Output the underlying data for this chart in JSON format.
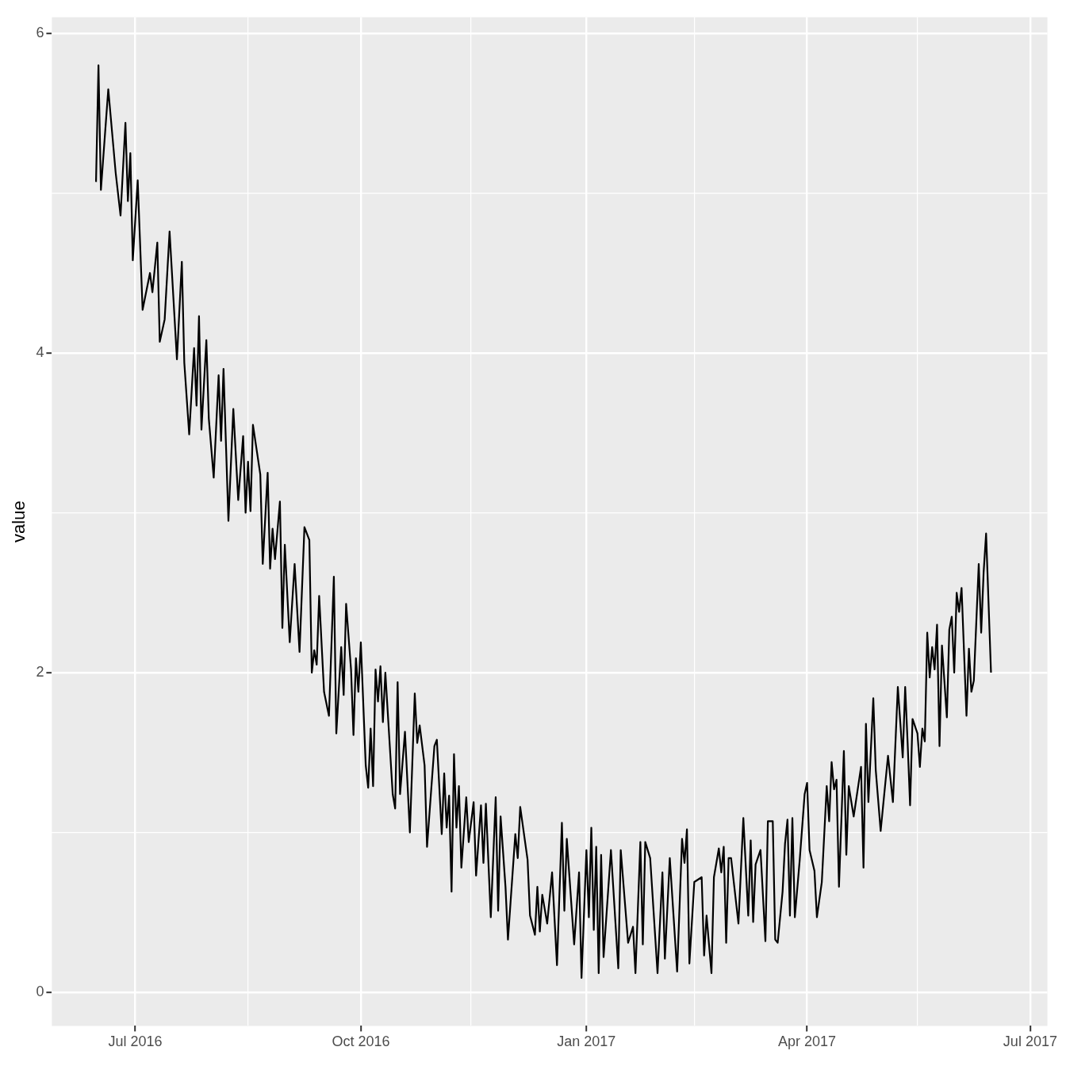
{
  "chart_data": {
    "type": "line",
    "ylabel": "value",
    "color": "#000000",
    "grid": true,
    "legend": false,
    "marker": "none",
    "line_style": "solid",
    "xlim": [
      "2016-05-28",
      "2017-07-08"
    ],
    "xticks": [
      {
        "value": "2016-07-01",
        "label": "Jul 2016"
      },
      {
        "value": "2016-08-16",
        "label": null
      },
      {
        "value": "2016-10-01",
        "label": "Oct 2016"
      },
      {
        "value": "2016-11-15",
        "label": null
      },
      {
        "value": "2017-01-01",
        "label": "Jan 2017"
      },
      {
        "value": "2017-02-14",
        "label": null
      },
      {
        "value": "2017-04-01",
        "label": "Apr 2017"
      },
      {
        "value": "2017-05-16",
        "label": null
      },
      {
        "value": "2017-07-01",
        "label": "Jul 2017"
      }
    ],
    "ylim": [
      -0.21,
      6.1
    ],
    "yticks": [
      0,
      {
        "value": 1,
        "label": null
      },
      2,
      {
        "value": 3,
        "label": null
      },
      4,
      {
        "value": 5,
        "label": null
      },
      6
    ],
    "x": [
      "2016-06-15",
      "2016-06-16",
      "2016-06-17",
      "2016-06-20",
      "2016-06-23",
      "2016-06-25",
      "2016-06-27",
      "2016-06-28",
      "2016-06-29",
      "2016-06-30",
      "2016-07-02",
      "2016-07-04",
      "2016-07-07",
      "2016-07-08",
      "2016-07-10",
      "2016-07-11",
      "2016-07-13",
      "2016-07-15",
      "2016-07-18",
      "2016-07-20",
      "2016-07-21",
      "2016-07-23",
      "2016-07-25",
      "2016-07-26",
      "2016-07-27",
      "2016-07-28",
      "2016-07-30",
      "2016-07-31",
      "2016-08-02",
      "2016-08-04",
      "2016-08-05",
      "2016-08-06",
      "2016-08-08",
      "2016-08-10",
      "2016-08-12",
      "2016-08-14",
      "2016-08-15",
      "2016-08-16",
      "2016-08-17",
      "2016-08-18",
      "2016-08-21",
      "2016-08-22",
      "2016-08-24",
      "2016-08-25",
      "2016-08-26",
      "2016-08-27",
      "2016-08-29",
      "2016-08-30",
      "2016-08-31",
      "2016-09-02",
      "2016-09-04",
      "2016-09-06",
      "2016-09-08",
      "2016-09-10",
      "2016-09-11",
      "2016-09-12",
      "2016-09-13",
      "2016-09-14",
      "2016-09-16",
      "2016-09-18",
      "2016-09-20",
      "2016-09-21",
      "2016-09-23",
      "2016-09-24",
      "2016-09-25",
      "2016-09-27",
      "2016-09-28",
      "2016-09-29",
      "2016-09-30",
      "2016-10-01",
      "2016-10-03",
      "2016-10-04",
      "2016-10-05",
      "2016-10-06",
      "2016-10-07",
      "2016-10-08",
      "2016-10-09",
      "2016-10-10",
      "2016-10-11",
      "2016-10-14",
      "2016-10-15",
      "2016-10-16",
      "2016-10-17",
      "2016-10-19",
      "2016-10-21",
      "2016-10-23",
      "2016-10-24",
      "2016-10-25",
      "2016-10-27",
      "2016-10-28",
      "2016-10-31",
      "2016-11-01",
      "2016-11-03",
      "2016-11-04",
      "2016-11-05",
      "2016-11-06",
      "2016-11-07",
      "2016-11-08",
      "2016-11-09",
      "2016-11-10",
      "2016-11-11",
      "2016-11-13",
      "2016-11-14",
      "2016-11-16",
      "2016-11-17",
      "2016-11-19",
      "2016-11-20",
      "2016-11-21",
      "2016-11-23",
      "2016-11-25",
      "2016-11-26",
      "2016-11-27",
      "2016-11-29",
      "2016-11-30",
      "2016-12-03",
      "2016-12-04",
      "2016-12-05",
      "2016-12-08",
      "2016-12-09",
      "2016-12-11",
      "2016-12-12",
      "2016-12-13",
      "2016-12-14",
      "2016-12-16",
      "2016-12-18",
      "2016-12-20",
      "2016-12-22",
      "2016-12-23",
      "2016-12-24",
      "2016-12-27",
      "2016-12-29",
      "2016-12-30",
      "2017-01-01",
      "2017-01-02",
      "2017-01-03",
      "2017-01-04",
      "2017-01-05",
      "2017-01-06",
      "2017-01-07",
      "2017-01-08",
      "2017-01-11",
      "2017-01-14",
      "2017-01-15",
      "2017-01-18",
      "2017-01-20",
      "2017-01-21",
      "2017-01-23",
      "2017-01-24",
      "2017-01-25",
      "2017-01-27",
      "2017-01-30",
      "2017-02-01",
      "2017-02-02",
      "2017-02-04",
      "2017-02-07",
      "2017-02-09",
      "2017-02-10",
      "2017-02-11",
      "2017-02-12",
      "2017-02-14",
      "2017-02-17",
      "2017-02-18",
      "2017-02-19",
      "2017-02-21",
      "2017-02-22",
      "2017-02-24",
      "2017-02-25",
      "2017-02-26",
      "2017-02-27",
      "2017-02-28",
      "2017-03-01",
      "2017-03-04",
      "2017-03-06",
      "2017-03-08",
      "2017-03-09",
      "2017-03-10",
      "2017-03-11",
      "2017-03-13",
      "2017-03-15",
      "2017-03-16",
      "2017-03-18",
      "2017-03-19",
      "2017-03-20",
      "2017-03-22",
      "2017-03-23",
      "2017-03-24",
      "2017-03-25",
      "2017-03-26",
      "2017-03-27",
      "2017-03-29",
      "2017-03-31",
      "2017-04-01",
      "2017-04-02",
      "2017-04-04",
      "2017-04-05",
      "2017-04-07",
      "2017-04-09",
      "2017-04-10",
      "2017-04-11",
      "2017-04-12",
      "2017-04-13",
      "2017-04-14",
      "2017-04-16",
      "2017-04-17",
      "2017-04-18",
      "2017-04-20",
      "2017-04-23",
      "2017-04-24",
      "2017-04-25",
      "2017-04-26",
      "2017-04-28",
      "2017-04-29",
      "2017-05-01",
      "2017-05-04",
      "2017-05-06",
      "2017-05-08",
      "2017-05-10",
      "2017-05-11",
      "2017-05-12",
      "2017-05-13",
      "2017-05-14",
      "2017-05-16",
      "2017-05-17",
      "2017-05-18",
      "2017-05-19",
      "2017-05-20",
      "2017-05-21",
      "2017-05-22",
      "2017-05-23",
      "2017-05-24",
      "2017-05-25",
      "2017-05-26",
      "2017-05-28",
      "2017-05-29",
      "2017-05-30",
      "2017-05-31",
      "2017-06-01",
      "2017-06-02",
      "2017-06-03",
      "2017-06-05",
      "2017-06-06",
      "2017-06-07",
      "2017-06-08",
      "2017-06-10",
      "2017-06-11",
      "2017-06-12",
      "2017-06-13",
      "2017-06-15"
    ],
    "values": [
      5.07,
      5.8,
      5.02,
      5.65,
      5.13,
      4.86,
      5.44,
      4.95,
      5.25,
      4.58,
      5.08,
      4.27,
      4.5,
      4.38,
      4.69,
      4.07,
      4.21,
      4.76,
      3.96,
      4.57,
      3.94,
      3.49,
      4.03,
      3.67,
      4.23,
      3.52,
      4.08,
      3.59,
      3.22,
      3.86,
      3.45,
      3.9,
      2.95,
      3.65,
      3.08,
      3.48,
      3.0,
      3.32,
      3.01,
      3.55,
      3.24,
      2.68,
      3.25,
      2.65,
      2.9,
      2.71,
      3.07,
      2.28,
      2.8,
      2.19,
      2.68,
      2.13,
      2.91,
      2.83,
      2.0,
      2.14,
      2.05,
      2.48,
      1.88,
      1.73,
      2.6,
      1.62,
      2.16,
      1.86,
      2.43,
      2.02,
      1.61,
      2.09,
      1.88,
      2.19,
      1.42,
      1.28,
      1.65,
      1.29,
      2.02,
      1.82,
      2.04,
      1.69,
      2.0,
      1.24,
      1.15,
      1.94,
      1.24,
      1.63,
      1.0,
      1.87,
      1.56,
      1.67,
      1.42,
      0.91,
      1.54,
      1.58,
      0.99,
      1.37,
      1.03,
      1.23,
      0.63,
      1.49,
      1.03,
      1.29,
      0.78,
      1.22,
      0.94,
      1.19,
      0.73,
      1.17,
      0.81,
      1.18,
      0.47,
      1.22,
      0.51,
      1.1,
      0.66,
      0.33,
      0.99,
      0.84,
      1.16,
      0.83,
      0.48,
      0.36,
      0.66,
      0.38,
      0.61,
      0.43,
      0.75,
      0.17,
      1.06,
      0.51,
      0.96,
      0.3,
      0.75,
      0.09,
      0.89,
      0.47,
      1.03,
      0.39,
      0.91,
      0.12,
      0.86,
      0.22,
      0.89,
      0.15,
      0.89,
      0.31,
      0.41,
      0.12,
      0.94,
      0.3,
      0.94,
      0.84,
      0.12,
      0.75,
      0.21,
      0.84,
      0.13,
      0.96,
      0.81,
      1.02,
      0.18,
      0.69,
      0.72,
      0.23,
      0.48,
      0.12,
      0.72,
      0.9,
      0.75,
      0.91,
      0.31,
      0.84,
      0.84,
      0.43,
      1.09,
      0.48,
      0.95,
      0.44,
      0.8,
      0.89,
      0.32,
      1.07,
      1.07,
      0.33,
      0.31,
      0.63,
      0.93,
      1.08,
      0.48,
      1.09,
      0.47,
      0.83,
      1.24,
      1.31,
      0.89,
      0.76,
      0.47,
      0.69,
      1.29,
      1.07,
      1.44,
      1.27,
      1.33,
      0.66,
      1.51,
      0.86,
      1.29,
      1.1,
      1.41,
      0.78,
      1.68,
      1.19,
      1.84,
      1.39,
      1.01,
      1.48,
      1.19,
      1.91,
      1.47,
      1.91,
      1.56,
      1.17,
      1.71,
      1.62,
      1.41,
      1.65,
      1.57,
      2.25,
      1.97,
      2.16,
      2.02,
      2.3,
      1.54,
      2.17,
      1.72,
      2.27,
      2.35,
      2.0,
      2.5,
      2.38,
      2.53,
      1.73,
      2.15,
      1.88,
      1.95,
      2.68,
      2.25,
      2.63,
      2.87,
      2.0
    ]
  }
}
